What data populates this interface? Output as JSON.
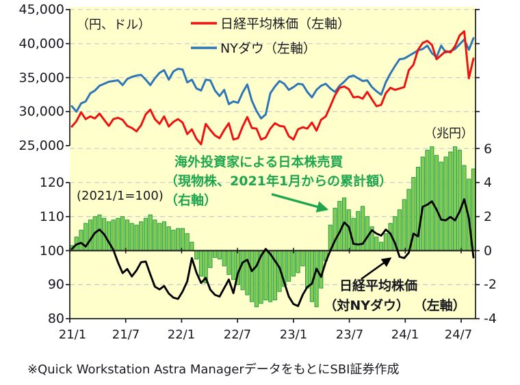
{
  "colors": {
    "plot_background": "#ffffcc",
    "gridline": "#c9cdd2",
    "axis_line": "#1a1a1a",
    "nikkei_red": "#ee1111",
    "dow_blue": "#2e75b6",
    "bar_fill": "#84cb55",
    "bar_border": "#12993f",
    "ratio_black": "#000000",
    "green_annotation": "#1ea64f"
  },
  "top_chart": {
    "unit_label": "（円、ドル）",
    "legend": [
      {
        "label": "日経平均株価（左軸）",
        "color": "#ee1111"
      },
      {
        "label": "NYダウ（左軸）",
        "color": "#2e75b6"
      }
    ]
  },
  "bottom_chart": {
    "index_label": "(2021/1=100)",
    "right_unit_label": "（兆円）"
  },
  "annotations": {
    "flow_note": {
      "line1": "海外投資家による日本株売買",
      "line2": "（現物株、2021年1月からの累計額）",
      "line3": "（右軸）"
    },
    "ratio_note": {
      "line1": "日経平均株価",
      "line2": "（対NYダウ） （左軸）"
    }
  },
  "axes": {
    "left_top_ticks": [
      "45,000",
      "40,000",
      "35,000",
      "30,000",
      "25,000"
    ],
    "left_bottom_ticks": [
      "120",
      "110",
      "100",
      "90",
      "80"
    ],
    "right_ticks": [
      "6",
      "4",
      "2",
      "0",
      "-2",
      "-4"
    ],
    "x_ticks": [
      "21/1",
      "21/7",
      "22/1",
      "22/7",
      "23/1",
      "23/7",
      "24/1",
      "24/7"
    ]
  },
  "footer": {
    "text": "※Quick Workstation Astra ManagerデータをもとにSBI証券作成"
  },
  "chart_data": [
    {
      "type": "line",
      "title": "日経平均株価とNYダウ",
      "x_start": "2021/01",
      "x_end": "2024/08",
      "points_per_month": 2,
      "x_tick_labels": [
        "21/1",
        "21/7",
        "22/1",
        "22/7",
        "23/1",
        "23/7",
        "24/1",
        "24/7"
      ],
      "ylabel": "（円、ドル）",
      "ylim": [
        25000,
        45000
      ],
      "grid": true,
      "legend_position": "top-center",
      "series": [
        {
          "name": "日経平均株価（左軸）",
          "color": "#ee1111",
          "values": [
            27800,
            28600,
            29900,
            28900,
            29300,
            29000,
            29700,
            28800,
            27900,
            28900,
            29100,
            28800,
            27900,
            27600,
            27100,
            28000,
            29600,
            30300,
            28900,
            28200,
            29300,
            27800,
            28500,
            28900,
            28400,
            26700,
            27400,
            26000,
            25200,
            28200,
            27300,
            26500,
            26100,
            27300,
            28300,
            25900,
            26100,
            27800,
            29200,
            27600,
            27500,
            25900,
            26200,
            27500,
            28300,
            27900,
            27800,
            26400,
            25900,
            27400,
            27700,
            27500,
            28400,
            27200,
            28800,
            29300,
            30800,
            32400,
            33500,
            33700,
            33300,
            32100,
            32200,
            31900,
            32900,
            31800,
            30800,
            31000,
            32700,
            33500,
            33200,
            33400,
            33600,
            36100,
            36900,
            39100,
            40100,
            40400,
            39800,
            37700,
            38300,
            38900,
            38700,
            39600,
            41200,
            41800,
            34900,
            37800
          ]
        },
        {
          "name": "NYダウ（左軸）",
          "color": "#2e75b6",
          "values": [
            30800,
            30000,
            31200,
            31500,
            32700,
            33100,
            33800,
            34100,
            34400,
            34500,
            34600,
            33900,
            34800,
            35100,
            35300,
            35400,
            34700,
            33900,
            34900,
            35700,
            36100,
            34700,
            35900,
            36300,
            36200,
            34300,
            34700,
            33400,
            33100,
            34700,
            34600,
            33100,
            32300,
            33200,
            31100,
            31500,
            31300,
            32800,
            34000,
            31600,
            30100,
            29000,
            29600,
            32700,
            33700,
            34500,
            34100,
            33200,
            33600,
            34100,
            34000,
            32900,
            32100,
            33200,
            33800,
            34100,
            33400,
            32900,
            33800,
            34400,
            35100,
            35300,
            34900,
            34500,
            34600,
            33600,
            33000,
            32500,
            34300,
            35600,
            36700,
            37700,
            37800,
            38200,
            38600,
            39000,
            39200,
            39700,
            38600,
            38000,
            39700,
            38700,
            38900,
            39200,
            39900,
            40600,
            39100,
            40800
          ]
        }
      ]
    },
    {
      "type": "bar",
      "title": "海外投資家による日本株売買と日経平均株価（対NYダウ）",
      "x_start": "2021/01",
      "x_end": "2024/08",
      "points_per_month": 2,
      "x_tick_labels": [
        "21/1",
        "21/7",
        "22/1",
        "22/7",
        "23/1",
        "23/7",
        "24/1",
        "24/7"
      ],
      "left_ylabel": "(2021/1=100)",
      "left_ylim": [
        80,
        120
      ],
      "right_ylabel": "（兆円）",
      "right_ylim": [
        -4,
        6
      ],
      "grid": true,
      "series": [
        {
          "name": "海外投資家による日本株売買（現物株、2021年1月からの累計額）（右軸）",
          "type": "bar",
          "axis": "right",
          "color": "#84cb55",
          "border_color": "#12993f",
          "values": [
            0.3,
            0.8,
            1.2,
            1.6,
            1.8,
            2.0,
            2.1,
            1.9,
            1.7,
            1.8,
            1.9,
            2.0,
            1.8,
            1.6,
            1.5,
            1.7,
            1.9,
            2.1,
            1.8,
            1.6,
            1.7,
            1.4,
            1.2,
            1.3,
            1.3,
            1.0,
            0.5,
            -0.5,
            -1.5,
            -1.9,
            -1.0,
            -0.4,
            -0.5,
            -0.9,
            -1.4,
            -1.7,
            -2.0,
            -2.3,
            -2.6,
            -3.0,
            -3.3,
            -3.1,
            -2.9,
            -3.0,
            -2.9,
            -2.4,
            -2.1,
            -1.8,
            -1.5,
            -1.3,
            -0.9,
            -2.2,
            -3.0,
            -3.3,
            -2.2,
            -0.6,
            1.5,
            2.5,
            2.9,
            3.1,
            2.4,
            1.9,
            2.3,
            2.6,
            2.0,
            1.4,
            0.8,
            0.5,
            1.0,
            1.6,
            2.0,
            2.4,
            3.0,
            3.6,
            4.3,
            4.9,
            5.5,
            5.9,
            6.1,
            5.6,
            5.2,
            5.5,
            5.8,
            6.1,
            5.9,
            5.0,
            4.2,
            4.8
          ]
        },
        {
          "name": "日経平均株価（対NYダウ）（左軸）",
          "type": "line",
          "axis": "left",
          "color": "#000000",
          "values": [
            100.5,
            101.8,
            102.3,
            101.2,
            103.2,
            105.2,
            106.2,
            104.8,
            102.5,
            100.2,
            96.5,
            93.4,
            94.6,
            92.4,
            94.2,
            96.6,
            96.8,
            93.0,
            89.4,
            88.6,
            89.6,
            87.4,
            86.2,
            85.8,
            88.0,
            91.0,
            97.8,
            93.5,
            90.5,
            92.0,
            88.5,
            87.0,
            86.5,
            89.0,
            91.5,
            87.5,
            93.5,
            96.5,
            97.3,
            94.0,
            95.5,
            98.5,
            100.5,
            99.0,
            97.0,
            95.0,
            90.7,
            86.5,
            84.3,
            83.7,
            87.0,
            89.3,
            90.3,
            94.7,
            92.3,
            96.7,
            100.0,
            103.0,
            105.4,
            108.3,
            107.0,
            102.0,
            101.8,
            102.0,
            104.0,
            106.0,
            105.0,
            104.4,
            106.2,
            105.0,
            102.2,
            98.2,
            97.8,
            99.4,
            105.0,
            104.2,
            112.9,
            113.5,
            114.5,
            112.1,
            109.1,
            108.9,
            109.9,
            108.9,
            111.5,
            115.1,
            109.5,
            98.0
          ]
        }
      ]
    }
  ]
}
